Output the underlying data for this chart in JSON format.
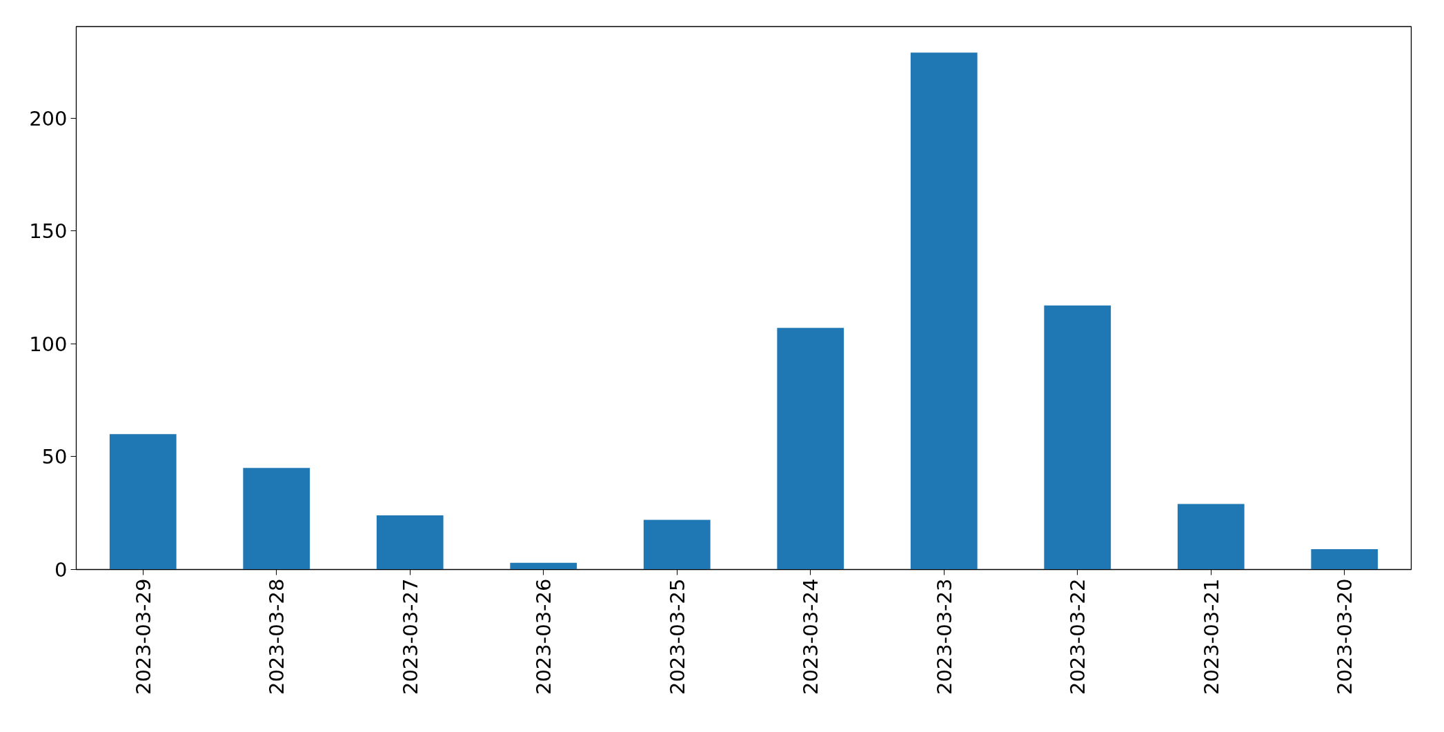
{
  "chart_data": {
    "type": "bar",
    "categories": [
      "2023-03-29",
      "2023-03-28",
      "2023-03-27",
      "2023-03-26",
      "2023-03-25",
      "2023-03-24",
      "2023-03-23",
      "2023-03-22",
      "2023-03-21",
      "2023-03-20"
    ],
    "values": [
      60,
      45,
      24,
      3,
      22,
      107,
      229,
      117,
      29,
      9
    ],
    "color": "#1f77b4",
    "ylim": [
      0,
      240.5
    ],
    "yticks": [
      0,
      50,
      100,
      150,
      200
    ],
    "grid": false
  }
}
